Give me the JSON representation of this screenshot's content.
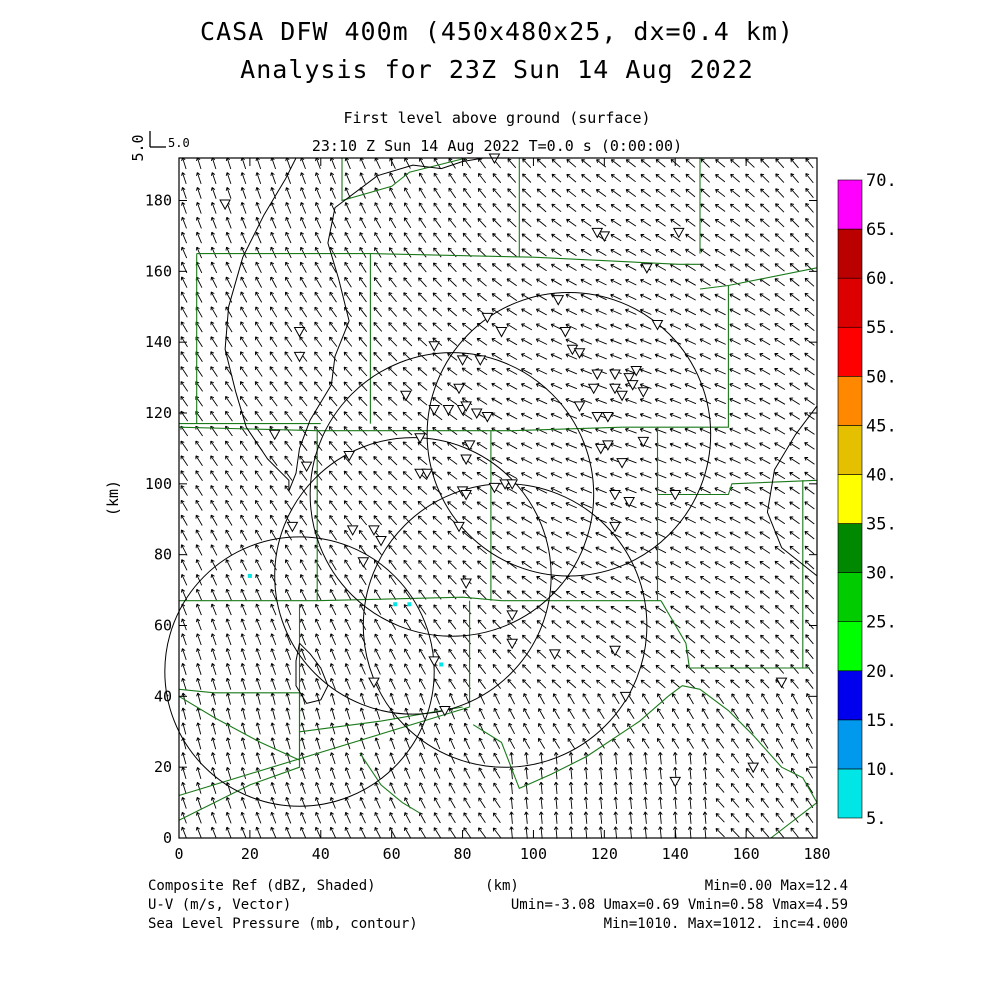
{
  "header": {
    "title_line1": "CASA DFW 400m (450x480x25, dx=0.4 km)",
    "title_line2": "Analysis for 23Z Sun 14 Aug 2022",
    "level": "First level above ground (surface)",
    "time": "23:10 Z Sun 14 Aug 2022    T=0.0 s (0:00:00)",
    "vector_scale_rotated": "5.0",
    "vector_scale": "5.0"
  },
  "footer": {
    "field1": "Composite Ref (dBZ, Shaded)",
    "field2": "U-V (m/s, Vector)",
    "field3": "Sea Level Pressure (mb, contour)",
    "xunit": "(km)",
    "stats1": "Min=0.00 Max=12.4",
    "stats2": "Umin=-3.08 Umax=0.69 Vmin=0.58 Vmax=4.59",
    "stats3": "Min=1010. Max=1012. inc=4.000"
  },
  "chart_data": {
    "type": "heatmap",
    "xlabel": "",
    "ylabel": "(km)",
    "xlim": [
      0,
      180
    ],
    "ylim": [
      0,
      192
    ],
    "x_ticks": [
      0,
      20,
      40,
      60,
      80,
      100,
      120,
      140,
      160,
      180
    ],
    "y_ticks": [
      0,
      20,
      40,
      60,
      80,
      100,
      120,
      140,
      160,
      180
    ],
    "colorbar": {
      "labels": [
        "5.",
        "10.",
        "15.",
        "20.",
        "25.",
        "30.",
        "35.",
        "40.",
        "45.",
        "50.",
        "55.",
        "60.",
        "65.",
        "70."
      ],
      "colors": [
        "#00e5e5",
        "#0099ee",
        "#0000ee",
        "#00ff00",
        "#00cc00",
        "#008800",
        "#ffff00",
        "#e5c000",
        "#ff8800",
        "#ff0000",
        "#dd0000",
        "#bb0000",
        "#ff00ff"
      ]
    },
    "radar_rings": [
      {
        "cx": 34,
        "cy": 47,
        "r": 38
      },
      {
        "cx": 66,
        "cy": 74,
        "r": 39
      },
      {
        "cx": 77,
        "cy": 97,
        "r": 40
      },
      {
        "cx": 110,
        "cy": 114,
        "r": 40
      },
      {
        "cx": 92,
        "cy": 60,
        "r": 40
      }
    ],
    "pressure_contours": [
      [
        [
          33,
          192
        ],
        [
          30,
          186
        ],
        [
          24,
          176
        ],
        [
          18,
          164
        ],
        [
          14,
          150
        ],
        [
          13,
          138
        ],
        [
          16,
          126
        ],
        [
          19,
          116
        ],
        [
          25,
          107
        ],
        [
          31,
          101
        ],
        [
          31,
          98
        ],
        [
          33,
          103
        ],
        [
          34,
          110
        ],
        [
          37,
          118
        ],
        [
          43,
          128
        ],
        [
          44,
          136
        ],
        [
          48,
          146
        ],
        [
          45,
          158
        ],
        [
          42,
          168
        ],
        [
          44,
          178
        ],
        [
          56,
          187
        ],
        [
          66,
          190
        ],
        [
          74,
          189
        ],
        [
          80,
          191
        ],
        [
          86,
          192
        ]
      ],
      [
        [
          34,
          55
        ],
        [
          37,
          52
        ],
        [
          40,
          48
        ],
        [
          42,
          43
        ],
        [
          40,
          39
        ],
        [
          36,
          38
        ],
        [
          33,
          43
        ],
        [
          33,
          50
        ],
        [
          34,
          55
        ]
      ],
      [
        [
          180,
          122
        ],
        [
          174,
          114
        ],
        [
          168,
          104
        ],
        [
          166,
          92
        ],
        [
          170,
          82
        ],
        [
          180,
          74
        ]
      ]
    ],
    "county_lines": [
      [
        [
          46,
          192
        ],
        [
          46,
          180
        ],
        [
          60,
          184
        ],
        [
          65,
          188
        ],
        [
          81,
          192
        ]
      ],
      [
        [
          96,
          192
        ],
        [
          96,
          164
        ]
      ],
      [
        [
          147,
          192
        ],
        [
          147,
          165
        ]
      ],
      [
        [
          5,
          165
        ],
        [
          5,
          117
        ]
      ],
      [
        [
          0,
          117
        ],
        [
          40,
          117
        ]
      ],
      [
        [
          5,
          165
        ],
        [
          54,
          165
        ]
      ],
      [
        [
          54,
          165
        ],
        [
          54,
          117
        ]
      ],
      [
        [
          54,
          165
        ],
        [
          100,
          164
        ],
        [
          141,
          162
        ],
        [
          147,
          162
        ]
      ],
      [
        [
          147,
          155
        ],
        [
          155,
          156
        ],
        [
          180,
          161
        ]
      ],
      [
        [
          155,
          156
        ],
        [
          155,
          116
        ],
        [
          125,
          116
        ]
      ],
      [
        [
          0,
          116
        ],
        [
          39,
          115
        ],
        [
          94,
          115
        ],
        [
          125,
          116
        ]
      ],
      [
        [
          39,
          115
        ],
        [
          39,
          67
        ]
      ],
      [
        [
          0,
          67
        ],
        [
          39,
          67
        ],
        [
          80,
          68
        ],
        [
          91,
          67
        ],
        [
          126,
          67
        ],
        [
          136,
          67
        ]
      ],
      [
        [
          88,
          115
        ],
        [
          88,
          67
        ]
      ],
      [
        [
          135,
          116
        ],
        [
          135,
          67
        ]
      ],
      [
        [
          135,
          97
        ],
        [
          155,
          97
        ],
        [
          156,
          100
        ],
        [
          180,
          101
        ]
      ],
      [
        [
          176,
          101
        ],
        [
          176,
          48
        ]
      ],
      [
        [
          136,
          67
        ],
        [
          143,
          55
        ],
        [
          144,
          48
        ],
        [
          178,
          48
        ]
      ],
      [
        [
          0,
          42
        ],
        [
          10,
          41
        ],
        [
          34,
          41
        ],
        [
          34,
          20
        ],
        [
          20,
          15
        ],
        [
          0,
          5
        ]
      ],
      [
        [
          34,
          66
        ],
        [
          34,
          20
        ]
      ],
      [
        [
          34,
          30
        ],
        [
          57,
          33
        ],
        [
          80,
          37
        ]
      ],
      [
        [
          82,
          67
        ],
        [
          82,
          37
        ]
      ],
      [
        [
          82,
          37
        ],
        [
          0,
          12
        ]
      ],
      [
        [
          0,
          40
        ],
        [
          10,
          34
        ],
        [
          23,
          27
        ],
        [
          34,
          22
        ]
      ],
      [
        [
          51,
          24
        ],
        [
          57,
          15
        ],
        [
          63,
          10
        ],
        [
          68,
          7
        ]
      ],
      [
        [
          83,
          32
        ],
        [
          91,
          27
        ],
        [
          96,
          14
        ],
        [
          105,
          18
        ],
        [
          115,
          23
        ],
        [
          130,
          33
        ],
        [
          138,
          40
        ],
        [
          142,
          43
        ],
        [
          147,
          42
        ],
        [
          155,
          36
        ],
        [
          162,
          29
        ],
        [
          170,
          20
        ],
        [
          176,
          17
        ],
        [
          180,
          10
        ]
      ],
      [
        [
          167,
          0
        ],
        [
          180,
          10
        ]
      ]
    ],
    "stations": [
      [
        13,
        179
      ],
      [
        34,
        143
      ],
      [
        34,
        136
      ],
      [
        27,
        114
      ],
      [
        36,
        105
      ],
      [
        32,
        88
      ],
      [
        48,
        108
      ],
      [
        49,
        87
      ],
      [
        55,
        87
      ],
      [
        57,
        84
      ],
      [
        52,
        78
      ],
      [
        64,
        125
      ],
      [
        68,
        113
      ],
      [
        68,
        103
      ],
      [
        70,
        103
      ],
      [
        72,
        121
      ],
      [
        72,
        139
      ],
      [
        76,
        121
      ],
      [
        79,
        127
      ],
      [
        80,
        121
      ],
      [
        81,
        122
      ],
      [
        82,
        111
      ],
      [
        81,
        107
      ],
      [
        80,
        98
      ],
      [
        81,
        97
      ],
      [
        79,
        88
      ],
      [
        81,
        72
      ],
      [
        84,
        120
      ],
      [
        87,
        119
      ],
      [
        89,
        99
      ],
      [
        92,
        100
      ],
      [
        85,
        135
      ],
      [
        80,
        135
      ],
      [
        87,
        147
      ],
      [
        91,
        143
      ],
      [
        94,
        100
      ],
      [
        107,
        152
      ],
      [
        109,
        143
      ],
      [
        111,
        138
      ],
      [
        113,
        122
      ],
      [
        113,
        137
      ],
      [
        118,
        131
      ],
      [
        117,
        127
      ],
      [
        118,
        119
      ],
      [
        121,
        119
      ],
      [
        119,
        110
      ],
      [
        121,
        111
      ],
      [
        123,
        97
      ],
      [
        123,
        88
      ],
      [
        123,
        127
      ],
      [
        123,
        131
      ],
      [
        125,
        125
      ],
      [
        125,
        106
      ],
      [
        127,
        130
      ],
      [
        127,
        95
      ],
      [
        128,
        128
      ],
      [
        129,
        132
      ],
      [
        131,
        126
      ],
      [
        131,
        112
      ],
      [
        132,
        161
      ],
      [
        135,
        145
      ],
      [
        141,
        171
      ],
      [
        140,
        97
      ],
      [
        120,
        170
      ],
      [
        118,
        171
      ],
      [
        94,
        55
      ],
      [
        94,
        63
      ],
      [
        106,
        52
      ],
      [
        123,
        53
      ],
      [
        126,
        40
      ],
      [
        140,
        16
      ],
      [
        162,
        20
      ],
      [
        170,
        44
      ],
      [
        55,
        44
      ],
      [
        75,
        36
      ],
      [
        72,
        50
      ],
      [
        89,
        192
      ]
    ],
    "reflectivity_pixels": [
      [
        20,
        74
      ],
      [
        61,
        66
      ],
      [
        65,
        66
      ],
      [
        74,
        49
      ]
    ],
    "wind_field": "mostly north-northwestward flow, 2-4 m/s"
  }
}
